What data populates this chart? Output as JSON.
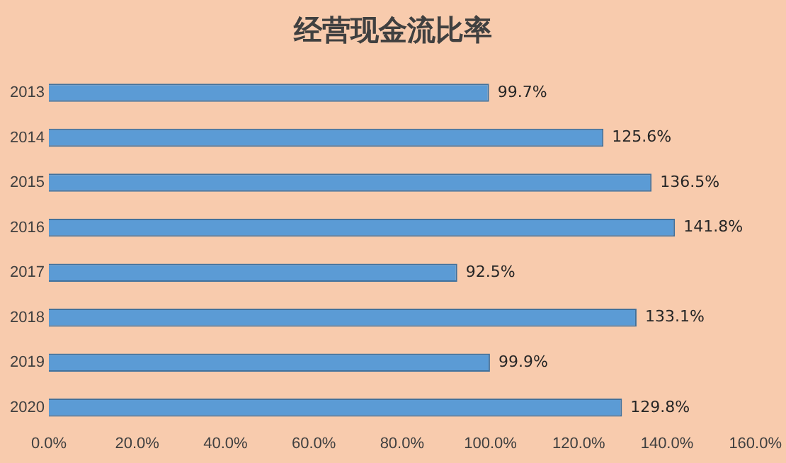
{
  "chart_data": {
    "type": "bar",
    "orientation": "horizontal",
    "title": "经营现金流比率",
    "categories": [
      "2013",
      "2014",
      "2015",
      "2016",
      "2017",
      "2018",
      "2019",
      "2020"
    ],
    "values": [
      99.7,
      125.6,
      136.5,
      141.8,
      92.5,
      133.1,
      99.9,
      129.8
    ],
    "value_labels": [
      "99.7%",
      "125.6%",
      "136.5%",
      "141.8%",
      "92.5%",
      "133.1%",
      "99.9%",
      "129.8%"
    ],
    "color": "#5b9bd5",
    "xlim": [
      0,
      160
    ],
    "xticks": [
      {
        "value": 0,
        "label": "0.0%"
      },
      {
        "value": 20,
        "label": "20.0%"
      },
      {
        "value": 40,
        "label": "40.0%"
      },
      {
        "value": 60,
        "label": "60.0%"
      },
      {
        "value": 80,
        "label": "80.0%"
      },
      {
        "value": 100,
        "label": "100.0%"
      },
      {
        "value": 120,
        "label": "120.0%"
      },
      {
        "value": 140,
        "label": "140.0%"
      },
      {
        "value": 160,
        "label": "160.0%"
      }
    ],
    "grid": false,
    "legend": false
  }
}
